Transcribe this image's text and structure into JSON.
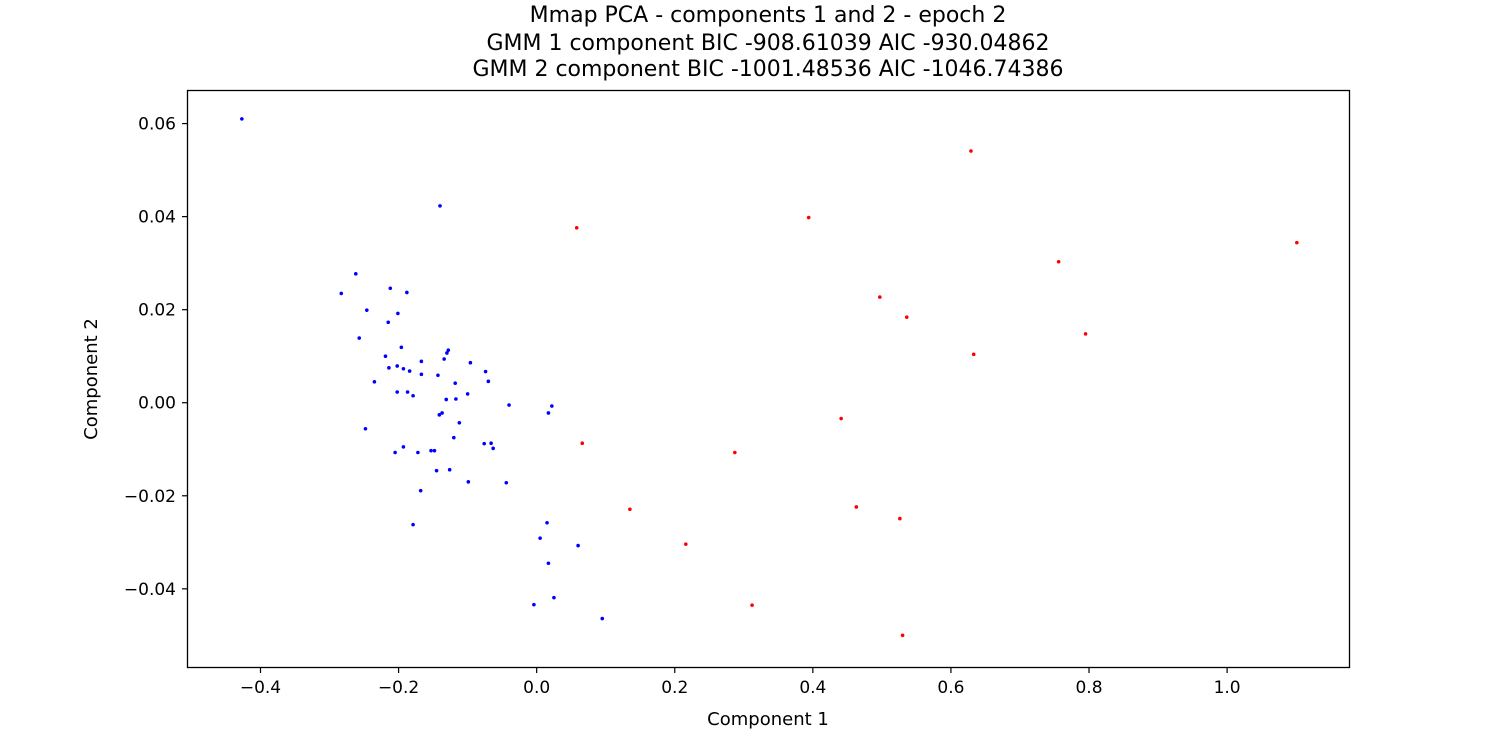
{
  "chart_data": {
    "type": "scatter",
    "title_lines": [
      "Mmap PCA - components 1 and 2 - epoch 2",
      "GMM 1 component BIC -908.61039 AIC -930.04862",
      "GMM 2 component BIC -1001.48536 AIC -1046.74386"
    ],
    "xlabel": "Component 1",
    "ylabel": "Component 2",
    "xlim": [
      -0.505,
      1.178
    ],
    "ylim": [
      -0.0568,
      0.067
    ],
    "x_ticks": [
      -0.4,
      -0.2,
      0.0,
      0.2,
      0.4,
      0.6,
      0.8,
      1.0
    ],
    "x_tick_labels": [
      "−0.4",
      "−0.2",
      "0.0",
      "0.2",
      "0.4",
      "0.6",
      "0.8",
      "1.0"
    ],
    "y_ticks": [
      -0.04,
      -0.02,
      0.0,
      0.02,
      0.04,
      0.06
    ],
    "y_tick_labels": [
      "−0.04",
      "−0.02",
      "0.00",
      "0.02",
      "0.04",
      "0.06"
    ],
    "grid": false,
    "series": [
      {
        "color": "#0000ff",
        "points": [
          [
            -0.427,
            0.061
          ],
          [
            -0.14,
            0.0423
          ],
          [
            -0.262,
            0.0277
          ],
          [
            -0.283,
            0.0235
          ],
          [
            -0.212,
            0.0246
          ],
          [
            -0.188,
            0.0237
          ],
          [
            -0.246,
            0.0199
          ],
          [
            -0.201,
            0.0192
          ],
          [
            -0.215,
            0.0173
          ],
          [
            -0.257,
            0.0139
          ],
          [
            -0.196,
            0.0119
          ],
          [
            -0.128,
            0.0113
          ],
          [
            -0.13,
            0.0107
          ],
          [
            -0.219,
            0.01
          ],
          [
            -0.134,
            0.0094
          ],
          [
            -0.167,
            0.0089
          ],
          [
            -0.096,
            0.0086
          ],
          [
            -0.214,
            0.0075
          ],
          [
            -0.202,
            0.0079
          ],
          [
            -0.193,
            0.0073
          ],
          [
            -0.184,
            0.0068
          ],
          [
            -0.074,
            0.0067
          ],
          [
            -0.167,
            0.0061
          ],
          [
            -0.143,
            0.0059
          ],
          [
            -0.235,
            0.0045
          ],
          [
            -0.07,
            0.0046
          ],
          [
            -0.118,
            0.0042
          ],
          [
            -0.202,
            0.0023
          ],
          [
            -0.187,
            0.0023
          ],
          [
            -0.179,
            0.0015
          ],
          [
            -0.1,
            0.0019
          ],
          [
            -0.131,
            0.0007
          ],
          [
            -0.117,
            0.0008
          ],
          [
            -0.04,
            -0.0005
          ],
          [
            0.022,
            -0.0007
          ],
          [
            0.017,
            -0.0022
          ],
          [
            -0.137,
            -0.0022
          ],
          [
            -0.141,
            -0.0026
          ],
          [
            -0.112,
            -0.0043
          ],
          [
            -0.248,
            -0.0056
          ],
          [
            -0.12,
            -0.0075
          ],
          [
            -0.076,
            -0.0088
          ],
          [
            -0.066,
            -0.0087
          ],
          [
            -0.063,
            -0.0098
          ],
          [
            -0.193,
            -0.0095
          ],
          [
            -0.153,
            -0.0103
          ],
          [
            -0.148,
            -0.0103
          ],
          [
            -0.172,
            -0.0107
          ],
          [
            -0.205,
            -0.0107
          ],
          [
            -0.145,
            -0.0146
          ],
          [
            -0.126,
            -0.0144
          ],
          [
            -0.099,
            -0.017
          ],
          [
            -0.044,
            -0.0172
          ],
          [
            -0.168,
            -0.0189
          ],
          [
            -0.179,
            -0.0262
          ],
          [
            0.015,
            -0.0258
          ],
          [
            0.005,
            -0.0291
          ],
          [
            0.06,
            -0.0307
          ],
          [
            0.017,
            -0.0345
          ],
          [
            0.025,
            -0.0419
          ],
          [
            -0.004,
            -0.0434
          ],
          [
            0.095,
            -0.0464
          ]
        ]
      },
      {
        "color": "#ff0000",
        "points": [
          [
            0.629,
            0.0541
          ],
          [
            0.394,
            0.0398
          ],
          [
            0.058,
            0.0376
          ],
          [
            1.101,
            0.0344
          ],
          [
            0.756,
            0.0303
          ],
          [
            0.497,
            0.0227
          ],
          [
            0.536,
            0.0184
          ],
          [
            0.795,
            0.0148
          ],
          [
            0.633,
            0.0104
          ],
          [
            0.441,
            -0.0034
          ],
          [
            0.066,
            -0.0087
          ],
          [
            0.287,
            -0.0107
          ],
          [
            0.463,
            -0.0224
          ],
          [
            0.135,
            -0.0229
          ],
          [
            0.526,
            -0.0249
          ],
          [
            0.216,
            -0.0304
          ],
          [
            0.312,
            -0.0435
          ],
          [
            0.53,
            -0.05
          ]
        ]
      }
    ]
  }
}
